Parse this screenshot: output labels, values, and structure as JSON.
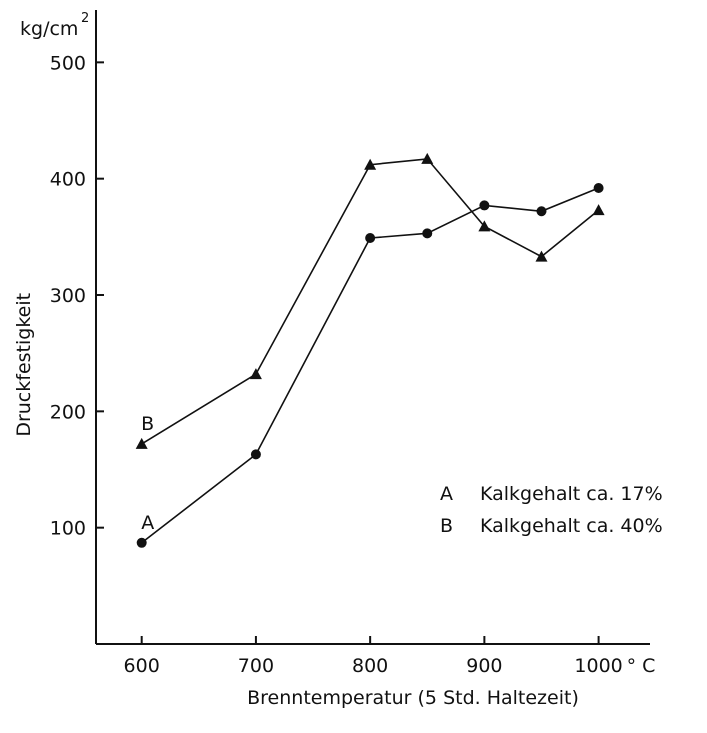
{
  "chart_data": {
    "type": "line",
    "title": "",
    "xlabel": "Brenntemperatur (5 Std. Haltezeit)",
    "ylabel": "Druckfestigkeit",
    "y_unit": "kg/cm",
    "y_unit_superscript": "2",
    "x_unit": "° C",
    "xlim": [
      560,
      1045
    ],
    "ylim": [
      0,
      545
    ],
    "x_ticks": [
      600,
      700,
      800,
      900,
      1000
    ],
    "y_ticks": [
      100,
      200,
      300,
      400,
      500
    ],
    "grid": false,
    "legend": "right",
    "series": [
      {
        "name": "A",
        "legend_text": "Kalkgehalt ca. 17%",
        "marker": "circle",
        "x": [
          600,
          700,
          800,
          850,
          900,
          950,
          1000
        ],
        "y": [
          87,
          163,
          349,
          353,
          377,
          372,
          392
        ]
      },
      {
        "name": "B",
        "legend_text": "Kalkgehalt ca. 40%",
        "marker": "triangle",
        "x": [
          600,
          700,
          800,
          850,
          900,
          950,
          1000
        ],
        "y": [
          172,
          232,
          412,
          417,
          359,
          333,
          373
        ]
      }
    ]
  }
}
